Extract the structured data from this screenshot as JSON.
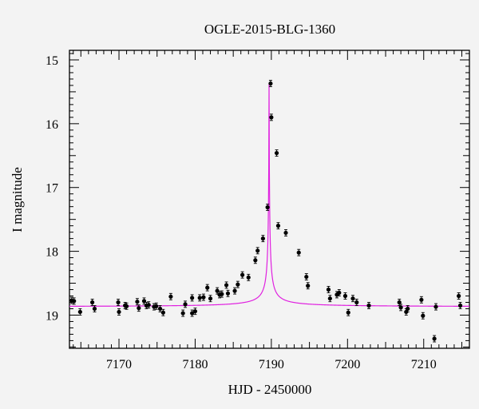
{
  "chart_data": {
    "type": "scatter",
    "title": "OGLE-2015-BLG-1360",
    "xlabel": "HJD - 2450000",
    "ylabel": "I magnitude",
    "xlim": [
      7163.5,
      7216
    ],
    "ylim": [
      19.52,
      14.85
    ],
    "y_inverted": true,
    "xticks": [
      7170,
      7180,
      7190,
      7200,
      7210
    ],
    "yticks": [
      15,
      16,
      17,
      18,
      19
    ],
    "grid": false,
    "point_color": "#000000",
    "model_color": "#e020e0",
    "model": {
      "t0": 7189.7,
      "baseline": 18.87,
      "peak": 15.37,
      "width": 5.2
    },
    "series": [
      {
        "x": [
          7163.8,
          7164.1,
          7164.9,
          7166.5,
          7166.8,
          7169.9,
          7170.0,
          7170.8,
          7171.0,
          7172.4,
          7172.6,
          7173.3,
          7173.6,
          7173.9,
          7174.6,
          7174.9,
          7175.4,
          7175.8,
          7176.8,
          7178.4,
          7178.7,
          7179.6,
          7179.6,
          7180.0,
          7180.6,
          7181.1,
          7181.6,
          7182.0,
          7182.9,
          7183.2,
          7183.5,
          7184.1,
          7184.3,
          7185.2,
          7185.6,
          7186.2,
          7187.0,
          7187.9,
          7188.2,
          7188.9,
          7189.5,
          7189.9,
          7190.0,
          7190.7,
          7190.9,
          7191.9,
          7193.6,
          7194.6,
          7194.8,
          7197.5,
          7197.7,
          7198.6,
          7198.9,
          7199.7,
          7200.1,
          7200.7,
          7201.2,
          7202.8,
          7206.8,
          7207.0,
          7207.7,
          7207.9,
          7209.7,
          7209.9,
          7211.4,
          7211.6,
          7214.6,
          7214.8
        ],
        "y": [
          18.77,
          18.78,
          18.95,
          18.8,
          18.9,
          18.8,
          18.95,
          18.85,
          18.86,
          18.79,
          18.89,
          18.78,
          18.85,
          18.84,
          18.87,
          18.86,
          18.9,
          18.96,
          18.71,
          18.97,
          18.83,
          18.73,
          18.97,
          18.94,
          18.73,
          18.72,
          18.57,
          18.74,
          18.62,
          18.68,
          18.67,
          18.53,
          18.66,
          18.62,
          18.52,
          18.37,
          18.41,
          18.14,
          17.99,
          17.8,
          17.31,
          15.37,
          15.9,
          16.46,
          17.6,
          17.71,
          18.02,
          18.4,
          18.54,
          18.6,
          18.74,
          18.68,
          18.65,
          18.7,
          18.96,
          18.74,
          18.8,
          18.85,
          18.8,
          18.88,
          18.95,
          18.9,
          18.76,
          19.01,
          19.37,
          18.87,
          18.7,
          18.85
        ]
      }
    ]
  }
}
